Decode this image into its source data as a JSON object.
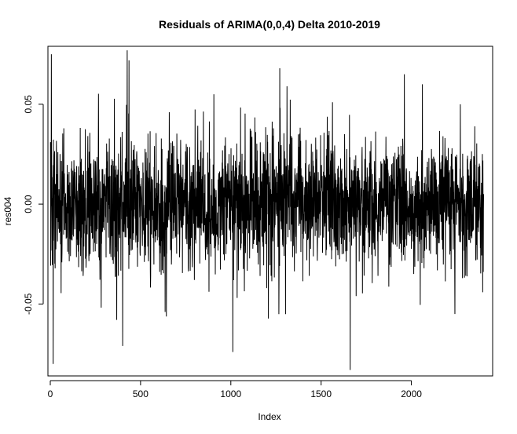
{
  "chart_data": {
    "type": "line",
    "title": "Residuals of ARIMA(0,0,4) Delta 2010-2019",
    "xlabel": "Index",
    "ylabel": "res004",
    "n_points": 2400,
    "xlim": [
      -13,
      2450
    ],
    "ylim": [
      -0.086,
      0.079
    ],
    "x_ticks": [
      0,
      500,
      1000,
      1500,
      2000
    ],
    "x_tick_labels": [
      "0",
      "500",
      "1000",
      "1500",
      "2000"
    ],
    "y_ticks": [
      -0.05,
      0.0,
      0.05
    ],
    "y_tick_labels": [
      "-0.05",
      "0.00",
      "0.05"
    ],
    "residual_sd": 0.0155,
    "grid": false,
    "legend": "none",
    "color": "#000000",
    "notable_points": [
      {
        "x": 5,
        "y": 0.075
      },
      {
        "x": 15,
        "y": -0.08
      },
      {
        "x": 425,
        "y": 0.077
      },
      {
        "x": 435,
        "y": 0.072
      },
      {
        "x": 400,
        "y": -0.071
      },
      {
        "x": 905,
        "y": 0.055
      },
      {
        "x": 1010,
        "y": -0.074
      },
      {
        "x": 1310,
        "y": 0.059
      },
      {
        "x": 1660,
        "y": -0.083
      },
      {
        "x": 1960,
        "y": 0.065
      },
      {
        "x": 2060,
        "y": 0.06
      },
      {
        "x": 2270,
        "y": 0.05
      },
      {
        "x": 2240,
        "y": -0.055
      }
    ]
  }
}
